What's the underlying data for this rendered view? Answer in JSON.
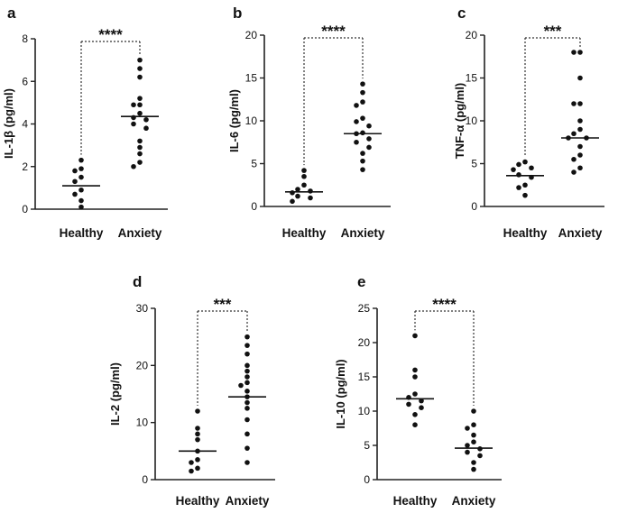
{
  "chart_data": [
    {
      "panel": "a",
      "type": "scatter",
      "ylabel": "IL-1β (pg/ml)",
      "categories": [
        "Healthy",
        "Anxiety"
      ],
      "ylim": [
        0,
        8
      ],
      "yticks": [
        0,
        2,
        4,
        6,
        8
      ],
      "significance": "****",
      "series": [
        {
          "name": "Healthy",
          "values": [
            2.3,
            1.9,
            1.8,
            1.5,
            1.3,
            0.9,
            0.7,
            0.4,
            0.1
          ],
          "mean": 1.1
        },
        {
          "name": "Anxiety",
          "values": [
            7.0,
            6.6,
            6.2,
            5.2,
            4.9,
            4.9,
            4.5,
            4.3,
            4.2,
            4.0,
            3.8,
            3.2,
            2.9,
            2.6,
            2.2,
            2.0
          ],
          "mean": 4.35
        }
      ]
    },
    {
      "panel": "b",
      "type": "scatter",
      "ylabel": "IL-6 (pg/ml)",
      "categories": [
        "Healthy",
        "Anxiety"
      ],
      "ylim": [
        0,
        20
      ],
      "yticks": [
        0,
        5,
        10,
        15,
        20
      ],
      "significance": "****",
      "series": [
        {
          "name": "Healthy",
          "values": [
            4.2,
            3.5,
            2.5,
            2.0,
            1.8,
            1.6,
            1.2,
            1.0,
            0.6
          ],
          "mean": 1.7
        },
        {
          "name": "Anxiety",
          "values": [
            14.3,
            13.3,
            12.2,
            11.8,
            10.3,
            9.9,
            9.4,
            8.6,
            8.5,
            7.9,
            7.5,
            6.9,
            6.2,
            5.3,
            4.3
          ],
          "mean": 8.5
        }
      ]
    },
    {
      "panel": "c",
      "type": "scatter",
      "ylabel": "TNF-α (pg/ml)",
      "categories": [
        "Healthy",
        "Anxiety"
      ],
      "ylim": [
        0,
        20
      ],
      "yticks": [
        0,
        5,
        10,
        15,
        20
      ],
      "significance": "***",
      "series": [
        {
          "name": "Healthy",
          "values": [
            5.2,
            4.9,
            4.5,
            4.3,
            3.7,
            3.4,
            2.5,
            2.2,
            1.3
          ],
          "mean": 3.6
        },
        {
          "name": "Anxiety",
          "values": [
            18.0,
            18.0,
            15.0,
            12.0,
            12.0,
            10.0,
            9.0,
            8.5,
            8.0,
            8.0,
            7.0,
            6.0,
            5.5,
            4.5,
            4.0
          ],
          "mean": 8.0
        }
      ]
    },
    {
      "panel": "d",
      "type": "scatter",
      "ylabel": "IL-2 (pg/ml)",
      "categories": [
        "Healthy",
        "Anxiety"
      ],
      "ylim": [
        0,
        30
      ],
      "yticks": [
        0,
        10,
        20,
        30
      ],
      "significance": "***",
      "series": [
        {
          "name": "Healthy",
          "values": [
            12.0,
            9.0,
            8.0,
            7.0,
            5.0,
            3.5,
            3.0,
            2.0,
            1.5
          ],
          "mean": 5.0
        },
        {
          "name": "Anxiety",
          "values": [
            25.0,
            23.5,
            22.0,
            20.0,
            19.0,
            18.0,
            17.0,
            16.5,
            15.5,
            14.5,
            13.5,
            12.5,
            10.5,
            8.0,
            5.5,
            3.0
          ],
          "mean": 14.5
        }
      ]
    },
    {
      "panel": "e",
      "type": "scatter",
      "ylabel": "IL-10 (pg/ml)",
      "categories": [
        "Healthy",
        "Anxiety"
      ],
      "ylim": [
        0,
        25
      ],
      "yticks": [
        0,
        5,
        10,
        15,
        20,
        25
      ],
      "significance": "****",
      "series": [
        {
          "name": "Healthy",
          "values": [
            21.0,
            16.0,
            15.0,
            12.5,
            12.0,
            11.5,
            11.0,
            10.5,
            9.5,
            8.0
          ],
          "mean": 11.8
        },
        {
          "name": "Anxiety",
          "values": [
            10.0,
            8.0,
            7.5,
            6.5,
            5.5,
            5.0,
            4.5,
            4.0,
            3.5,
            2.5,
            1.5
          ],
          "mean": 4.6
        }
      ]
    }
  ]
}
